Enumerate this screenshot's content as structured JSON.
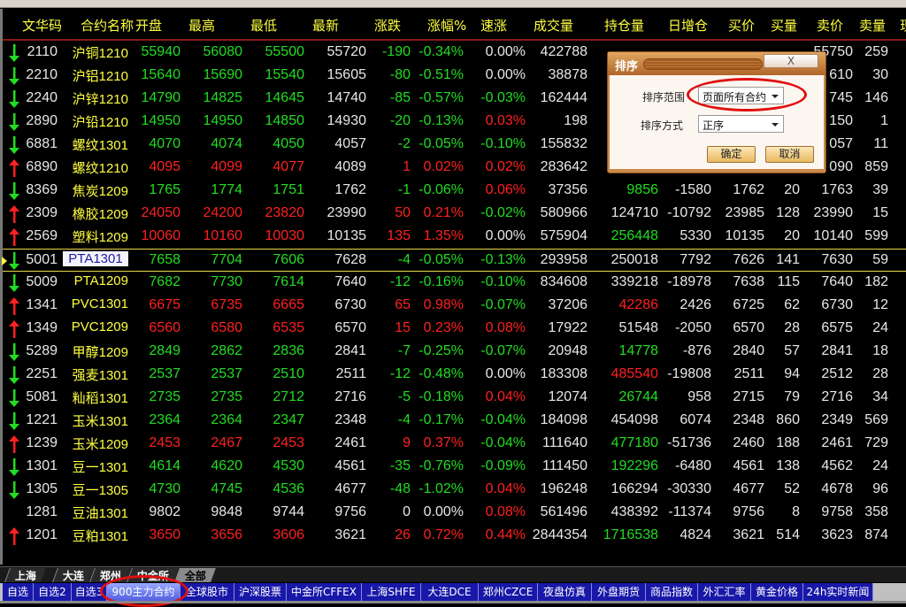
{
  "columns": [
    "文华码",
    "合约名称",
    "开盘",
    "最高",
    "最低",
    "最新",
    "涨跌",
    "涨幅%",
    "速涨",
    "成交量",
    "持仓量",
    "日增仓",
    "买价",
    "买量",
    "卖价",
    "卖量",
    "现"
  ],
  "colors": {
    "up": "#ff2020",
    "down": "#22dd22",
    "flat": "#e8e8e8",
    "header": "#ffff40"
  },
  "rows": [
    {
      "dir": "d",
      "code": "2110",
      "name": "沪铜1210",
      "open": "55940",
      "high": "56080",
      "low": "55500",
      "last": "55720",
      "chg": "-190",
      "pct": "-0.34%",
      "spd": "0.00%",
      "spdc": "w",
      "vol": "422788",
      "oi": "",
      "oic": "w",
      "inc": "",
      "bid": "",
      "bidv": "",
      "ask": "55750",
      "askv": "259"
    },
    {
      "dir": "d",
      "code": "2210",
      "name": "沪铝1210",
      "open": "15640",
      "high": "15690",
      "low": "15540",
      "last": "15605",
      "chg": "-80",
      "pct": "-0.51%",
      "spd": "0.00%",
      "spdc": "w",
      "vol": "38878",
      "oi": "",
      "oic": "w",
      "inc": "",
      "bid": "",
      "bidv": "",
      "ask": "610",
      "askv": "30"
    },
    {
      "dir": "d",
      "code": "2240",
      "name": "沪锌1210",
      "open": "14790",
      "high": "14825",
      "low": "14645",
      "last": "14740",
      "chg": "-85",
      "pct": "-0.57%",
      "spd": "-0.03%",
      "spdc": "d",
      "vol": "162444",
      "oi": "",
      "oic": "w",
      "inc": "",
      "bid": "",
      "bidv": "",
      "ask": "745",
      "askv": "146"
    },
    {
      "dir": "d",
      "code": "2890",
      "name": "沪铅1210",
      "open": "14950",
      "high": "14950",
      "low": "14850",
      "last": "14930",
      "chg": "-20",
      "pct": "-0.13%",
      "spd": "0.03%",
      "spdc": "u",
      "vol": "198",
      "oi": "",
      "oic": "w",
      "inc": "",
      "bid": "",
      "bidv": "",
      "ask": "150",
      "askv": "1"
    },
    {
      "dir": "d",
      "code": "6881",
      "name": "螺纹1301",
      "open": "4070",
      "high": "4074",
      "low": "4050",
      "last": "4057",
      "chg": "-2",
      "pct": "-0.05%",
      "spd": "-0.10%",
      "spdc": "d",
      "vol": "155832",
      "oi": "",
      "oic": "w",
      "inc": "",
      "bid": "",
      "bidv": "",
      "ask": "057",
      "askv": "11"
    },
    {
      "dir": "u",
      "code": "6890",
      "name": "螺纹1210",
      "open": "4095",
      "high": "4099",
      "low": "4077",
      "last": "4089",
      "chg": "1",
      "pct": "0.02%",
      "spd": "0.02%",
      "spdc": "u",
      "vol": "283642",
      "oi": "",
      "oic": "w",
      "inc": "",
      "bid": "",
      "bidv": "",
      "ask": "090",
      "askv": "859"
    },
    {
      "dir": "d",
      "code": "8369",
      "name": "焦炭1209",
      "open": "1765",
      "high": "1774",
      "low": "1751",
      "last": "1762",
      "chg": "-1",
      "pct": "-0.06%",
      "spd": "0.06%",
      "spdc": "u",
      "vol": "37356",
      "oi": "9856",
      "oic": "d",
      "inc": "-1580",
      "bid": "1762",
      "bidv": "20",
      "ask": "1763",
      "askv": "39"
    },
    {
      "dir": "u",
      "code": "2309",
      "name": "橡胶1209",
      "open": "24050",
      "high": "24200",
      "low": "23820",
      "last": "23990",
      "chg": "50",
      "pct": "0.21%",
      "spd": "-0.02%",
      "spdc": "d",
      "vol": "580966",
      "oi": "124710",
      "oic": "w",
      "inc": "-10792",
      "bid": "23985",
      "bidv": "128",
      "ask": "23990",
      "askv": "15"
    },
    {
      "dir": "u",
      "code": "2569",
      "name": "塑料1209",
      "open": "10060",
      "high": "10160",
      "low": "10030",
      "last": "10135",
      "chg": "135",
      "pct": "1.35%",
      "spd": "0.00%",
      "spdc": "w",
      "vol": "575904",
      "oi": "256448",
      "oic": "d",
      "inc": "5330",
      "bid": "10135",
      "bidv": "20",
      "ask": "10140",
      "askv": "599"
    },
    {
      "dir": "d",
      "code": "5001",
      "name": "PTA1301",
      "open": "7658",
      "high": "7704",
      "low": "7606",
      "last": "7628",
      "chg": "-4",
      "pct": "-0.05%",
      "spd": "-0.13%",
      "spdc": "d",
      "vol": "293958",
      "oi": "250018",
      "oic": "w",
      "inc": "7792",
      "bid": "7626",
      "bidv": "141",
      "ask": "7630",
      "askv": "59",
      "selected": true
    },
    {
      "dir": "d",
      "code": "5009",
      "name": "PTA1209",
      "open": "7682",
      "high": "7730",
      "low": "7614",
      "last": "7640",
      "chg": "-12",
      "pct": "-0.16%",
      "spd": "-0.10%",
      "spdc": "d",
      "vol": "834608",
      "oi": "339218",
      "oic": "w",
      "inc": "-18978",
      "bid": "7638",
      "bidv": "115",
      "ask": "7640",
      "askv": "182"
    },
    {
      "dir": "u",
      "code": "1341",
      "name": "PVC1301",
      "open": "6675",
      "high": "6735",
      "low": "6665",
      "last": "6730",
      "chg": "65",
      "pct": "0.98%",
      "spd": "-0.07%",
      "spdc": "d",
      "vol": "37206",
      "oi": "42286",
      "oic": "u",
      "inc": "2426",
      "bid": "6725",
      "bidv": "62",
      "ask": "6730",
      "askv": "12"
    },
    {
      "dir": "u",
      "code": "1349",
      "name": "PVC1209",
      "open": "6560",
      "high": "6580",
      "low": "6535",
      "last": "6570",
      "chg": "15",
      "pct": "0.23%",
      "spd": "0.08%",
      "spdc": "u",
      "vol": "17922",
      "oi": "51548",
      "oic": "w",
      "inc": "-2050",
      "bid": "6570",
      "bidv": "28",
      "ask": "6575",
      "askv": "24"
    },
    {
      "dir": "d",
      "code": "5289",
      "name": "甲醇1209",
      "open": "2849",
      "high": "2862",
      "low": "2836",
      "last": "2841",
      "chg": "-7",
      "pct": "-0.25%",
      "spd": "-0.07%",
      "spdc": "d",
      "vol": "20948",
      "oi": "14778",
      "oic": "d",
      "inc": "-876",
      "bid": "2840",
      "bidv": "57",
      "ask": "2841",
      "askv": "18"
    },
    {
      "dir": "d",
      "code": "2251",
      "name": "强麦1301",
      "open": "2537",
      "high": "2537",
      "low": "2510",
      "last": "2511",
      "chg": "-12",
      "pct": "-0.48%",
      "spd": "0.00%",
      "spdc": "w",
      "vol": "183308",
      "oi": "485540",
      "oic": "u",
      "inc": "-19808",
      "bid": "2511",
      "bidv": "94",
      "ask": "2512",
      "askv": "28"
    },
    {
      "dir": "d",
      "code": "5081",
      "name": "籼稻1301",
      "open": "2735",
      "high": "2735",
      "low": "2712",
      "last": "2716",
      "chg": "-5",
      "pct": "-0.18%",
      "spd": "0.04%",
      "spdc": "u",
      "vol": "12074",
      "oi": "26744",
      "oic": "d",
      "inc": "958",
      "bid": "2715",
      "bidv": "79",
      "ask": "2716",
      "askv": "34"
    },
    {
      "dir": "d",
      "code": "1221",
      "name": "玉米1301",
      "open": "2364",
      "high": "2364",
      "low": "2347",
      "last": "2348",
      "chg": "-4",
      "pct": "-0.17%",
      "spd": "-0.04%",
      "spdc": "d",
      "vol": "184098",
      "oi": "454098",
      "oic": "w",
      "inc": "6074",
      "bid": "2348",
      "bidv": "860",
      "ask": "2349",
      "askv": "569"
    },
    {
      "dir": "u",
      "code": "1239",
      "name": "玉米1209",
      "open": "2453",
      "high": "2467",
      "low": "2453",
      "last": "2461",
      "chg": "9",
      "pct": "0.37%",
      "spd": "-0.04%",
      "spdc": "d",
      "vol": "111640",
      "oi": "477180",
      "oic": "d",
      "inc": "-51736",
      "bid": "2460",
      "bidv": "188",
      "ask": "2461",
      "askv": "729"
    },
    {
      "dir": "d",
      "code": "1301",
      "name": "豆一1301",
      "open": "4614",
      "high": "4620",
      "low": "4530",
      "last": "4561",
      "chg": "-35",
      "pct": "-0.76%",
      "spd": "-0.09%",
      "spdc": "d",
      "vol": "111450",
      "oi": "192296",
      "oic": "d",
      "inc": "-6480",
      "bid": "4561",
      "bidv": "138",
      "ask": "4562",
      "askv": "24"
    },
    {
      "dir": "d",
      "code": "1305",
      "name": "豆一1305",
      "open": "4730",
      "high": "4745",
      "low": "4536",
      "last": "4677",
      "chg": "-48",
      "pct": "-1.02%",
      "spd": "0.04%",
      "spdc": "u",
      "vol": "196248",
      "oi": "166294",
      "oic": "w",
      "inc": "-30330",
      "bid": "4677",
      "bidv": "52",
      "ask": "4678",
      "askv": "96"
    },
    {
      "dir": "w",
      "code": "1281",
      "name": "豆油1301",
      "open": "9802",
      "high": "9848",
      "low": "9744",
      "last": "9756",
      "chg": "0",
      "pct": "0.00%",
      "spd": "0.08%",
      "spdc": "u",
      "vol": "561496",
      "oi": "438392",
      "oic": "w",
      "inc": "-11374",
      "bid": "9756",
      "bidv": "8",
      "ask": "9758",
      "askv": "358"
    },
    {
      "dir": "u",
      "code": "1201",
      "name": "豆粕1301",
      "open": "3650",
      "high": "3656",
      "low": "3606",
      "last": "3621",
      "chg": "26",
      "pct": "0.72%",
      "spd": "0.44%",
      "spdc": "u",
      "vol": "2844354",
      "oi": "1716538",
      "oic": "d",
      "inc": "4824",
      "bid": "3621",
      "bidv": "514",
      "ask": "3623",
      "askv": "874"
    }
  ],
  "dialog": {
    "title": "排序",
    "close": "X",
    "range_label": "排序范围",
    "range_value": "页面所有合约",
    "order_label": "排序方式",
    "order_value": "正序",
    "ok": "确定",
    "cancel": "取消"
  },
  "exchange_tabs": [
    "上海",
    "大连",
    "郑州",
    "中金所",
    "全部"
  ],
  "exchange_active": "全部",
  "bottom_tabs": [
    "自选",
    "自选2",
    "自选3",
    "900主力合约",
    "全球股市",
    "沪深股票",
    "中金所CFFEX",
    "上海SHFE",
    "大连DCE",
    "郑州CZCE",
    "夜盘仿真",
    "外盘期货",
    "商品指数",
    "外汇汇率",
    "黄金价格",
    "24h实时新闻"
  ],
  "bottom_active": "900主力合约"
}
